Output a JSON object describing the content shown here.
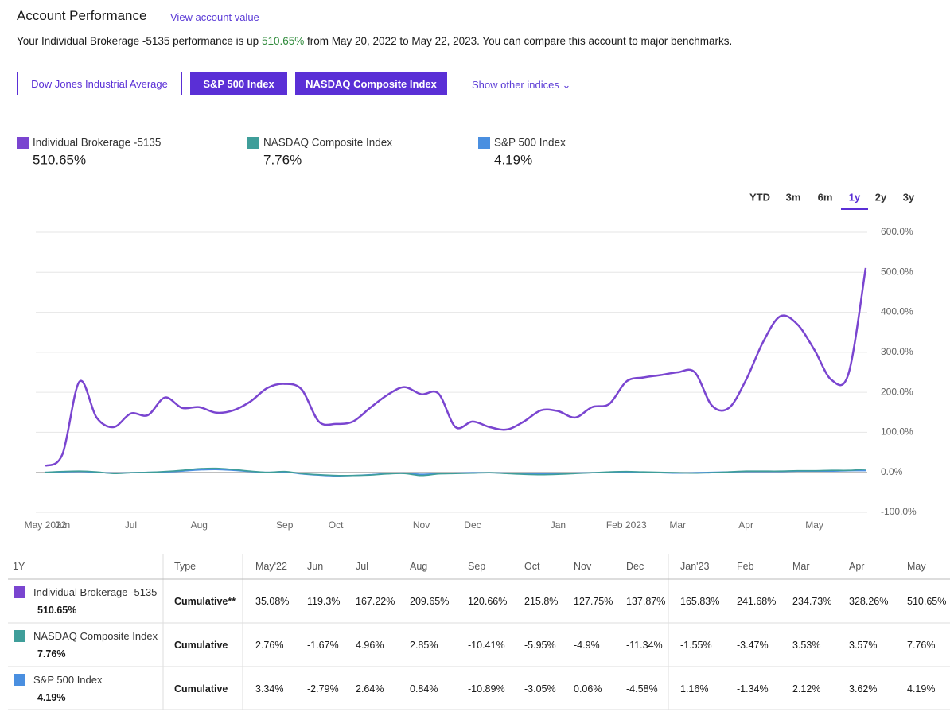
{
  "header": {
    "title": "Account Performance",
    "link": "View account value",
    "summary_before": "Your Individual Brokerage -5135 performance is up",
    "summary_value": "510.65%",
    "summary_after": "from May 20, 2022 to May 22, 2023. You can compare this account to major benchmarks."
  },
  "buttons": [
    {
      "label": "Dow Jones Industrial Average",
      "selected": false
    },
    {
      "label": "S&P 500 Index",
      "selected": true
    },
    {
      "label": "NASDAQ Composite Index",
      "selected": true
    }
  ],
  "show_other": "Show other indices",
  "legend_values": [
    "510.65%",
    "7.76%",
    "4.19%"
  ],
  "range_tabs": [
    "YTD",
    "3m",
    "6m",
    "1y",
    "2y",
    "3y"
  ],
  "active_range": "1y",
  "chart_data": {
    "type": "line",
    "categories": [
      "May 2022",
      "Jun",
      null,
      null,
      null,
      "Jul",
      null,
      null,
      null,
      "Aug",
      null,
      null,
      null,
      null,
      "Sep",
      null,
      null,
      "Oct",
      null,
      null,
      null,
      null,
      "Nov",
      null,
      null,
      "Dec",
      null,
      null,
      null,
      null,
      "Jan",
      null,
      null,
      null,
      "Feb 2023",
      null,
      null,
      "Mar",
      null,
      null,
      null,
      "Apr",
      null,
      null,
      null,
      "May",
      null,
      null,
      null
    ],
    "series": [
      {
        "name": "Individual Brokerage -5135",
        "color": "#7a45d0",
        "values": [
          16,
          45,
          227,
          137,
          113,
          147,
          143,
          187,
          161,
          163,
          149,
          155,
          177,
          211,
          221,
          207,
          127,
          121,
          127,
          161,
          193,
          213,
          195,
          197,
          113,
          127,
          113,
          107,
          127,
          155,
          153,
          137,
          163,
          171,
          227,
          237,
          243,
          250,
          250,
          167,
          161,
          231,
          326,
          390,
          370,
          306,
          231,
          247,
          510.65
        ]
      },
      {
        "name": "NASDAQ Composite Index",
        "color": "#3f9e9a",
        "values": [
          0,
          2,
          3,
          1,
          -3,
          -1,
          0,
          2,
          5,
          9,
          10,
          7,
          3,
          0,
          2,
          -3,
          -6,
          -8,
          -8,
          -7,
          -4,
          -3,
          -8,
          -4,
          -3,
          -2,
          -1,
          -3,
          -5,
          -6,
          -5,
          -3,
          -1,
          1,
          2,
          1,
          0,
          -1,
          -2,
          -1,
          1,
          3,
          3,
          3,
          4,
          4,
          5,
          5,
          7.76
        ]
      },
      {
        "name": "S&P 500 Index",
        "color": "#4a8fe0",
        "values": [
          0,
          1,
          2,
          0,
          -2,
          -1,
          0,
          1,
          3,
          6,
          7,
          5,
          2,
          0,
          1,
          -4,
          -7,
          -9,
          -8,
          -6,
          -3,
          -2,
          -5,
          -3,
          -2,
          -1,
          -1,
          -2,
          -3,
          -4,
          -3,
          -2,
          -1,
          0,
          1,
          0,
          -1,
          -2,
          -1,
          0,
          1,
          2,
          2,
          2,
          3,
          3,
          3,
          4,
          4.19
        ]
      }
    ],
    "ylim": [
      -100,
      600
    ],
    "yticks": [
      {
        "value": -100,
        "label": "-100.0%"
      },
      {
        "value": 0,
        "label": "0.0%"
      },
      {
        "value": 100,
        "label": "100.0%"
      },
      {
        "value": 200,
        "label": "200.0%"
      },
      {
        "value": 300,
        "label": "300.0%"
      },
      {
        "value": 400,
        "label": "400.0%"
      },
      {
        "value": 500,
        "label": "500.0%"
      },
      {
        "value": 600,
        "label": "600.0%"
      }
    ],
    "grid": true
  },
  "table": {
    "header": [
      "1Y",
      "Type",
      "May'22",
      "Jun",
      "Jul",
      "Aug",
      "Sep",
      "Oct",
      "Nov",
      "Dec",
      "Jan'23",
      "Feb",
      "Mar",
      "Apr",
      "May"
    ],
    "rows": [
      {
        "name": "Individual Brokerage -5135",
        "total": "510.65%",
        "type": "Cumulative**",
        "values": [
          "35.08%",
          "119.3%",
          "167.22%",
          "209.65%",
          "120.66%",
          "215.8%",
          "127.75%",
          "137.87%",
          "165.83%",
          "241.68%",
          "234.73%",
          "328.26%",
          "510.65%"
        ]
      },
      {
        "name": "NASDAQ Composite Index",
        "total": "7.76%",
        "type": "Cumulative",
        "values": [
          "2.76%",
          "-1.67%",
          "4.96%",
          "2.85%",
          "-10.41%",
          "-5.95%",
          "-4.9%",
          "-11.34%",
          "-1.55%",
          "-3.47%",
          "3.53%",
          "3.57%",
          "7.76%"
        ]
      },
      {
        "name": "S&P 500 Index",
        "total": "4.19%",
        "type": "Cumulative",
        "values": [
          "3.34%",
          "-2.79%",
          "2.64%",
          "0.84%",
          "-10.89%",
          "-3.05%",
          "0.06%",
          "-4.58%",
          "1.16%",
          "-1.34%",
          "2.12%",
          "3.62%",
          "4.19%"
        ]
      }
    ]
  }
}
